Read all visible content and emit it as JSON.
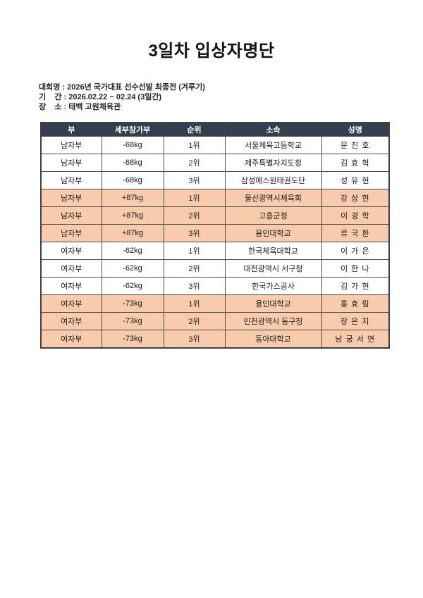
{
  "title": "3일차 입상자명단",
  "meta": {
    "lines": [
      "대회명 : 2026년 국가대표 선수선발 최종전 (겨루기)",
      "기    간 : 2026.02.22 ~ 02.24 (3일간)",
      "장    소 : 태백 고원체육관"
    ]
  },
  "table": {
    "headers": [
      "부",
      "세부참가부",
      "순위",
      "소속",
      "성명"
    ],
    "rows": [
      {
        "division": "남자부",
        "category": "-68kg",
        "rank": "1위",
        "affiliation": "서울체육고등학교",
        "name": "문 진 호",
        "highlight": false
      },
      {
        "division": "남자부",
        "category": "-68kg",
        "rank": "2위",
        "affiliation": "제주특별자치도청",
        "name": "김 효 혁",
        "highlight": false
      },
      {
        "division": "남자부",
        "category": "-68kg",
        "rank": "3위",
        "affiliation": "삼성에스원태권도단",
        "name": "성 유 현",
        "highlight": false
      },
      {
        "division": "남자부",
        "category": "+87kg",
        "rank": "1위",
        "affiliation": "울산광역시체육회",
        "name": "강 상 현",
        "highlight": true
      },
      {
        "division": "남자부",
        "category": "+87kg",
        "rank": "2위",
        "affiliation": "고흥군청",
        "name": "이 경 학",
        "highlight": true
      },
      {
        "division": "남자부",
        "category": "+87kg",
        "rank": "3위",
        "affiliation": "용인대학교",
        "name": "류 국 환",
        "highlight": true
      },
      {
        "division": "여자부",
        "category": "-62kg",
        "rank": "1위",
        "affiliation": "한국체육대학교",
        "name": "이 가 은",
        "highlight": false
      },
      {
        "division": "여자부",
        "category": "-62kg",
        "rank": "2위",
        "affiliation": "대전광역시 서구청",
        "name": "이 한 나",
        "highlight": false
      },
      {
        "division": "여자부",
        "category": "-62kg",
        "rank": "3위",
        "affiliation": "한국가스공사",
        "name": "김 가 현",
        "highlight": false
      },
      {
        "division": "여자부",
        "category": "-73kg",
        "rank": "1위",
        "affiliation": "용인대학교",
        "name": "홍 효 림",
        "highlight": true
      },
      {
        "division": "여자부",
        "category": "-73kg",
        "rank": "2위",
        "affiliation": "인천광역시 동구청",
        "name": "장 은 지",
        "highlight": true
      },
      {
        "division": "여자부",
        "category": "-73kg",
        "rank": "3위",
        "affiliation": "동아대학교",
        "name": "남 궁 서 연",
        "highlight": true
      }
    ]
  },
  "colors": {
    "header_bg": "#333F50",
    "header_text": "#FFFFFF",
    "highlight_bg": "#F8CBAD",
    "row_bg": "#FFFFFF",
    "border": "#404040"
  }
}
